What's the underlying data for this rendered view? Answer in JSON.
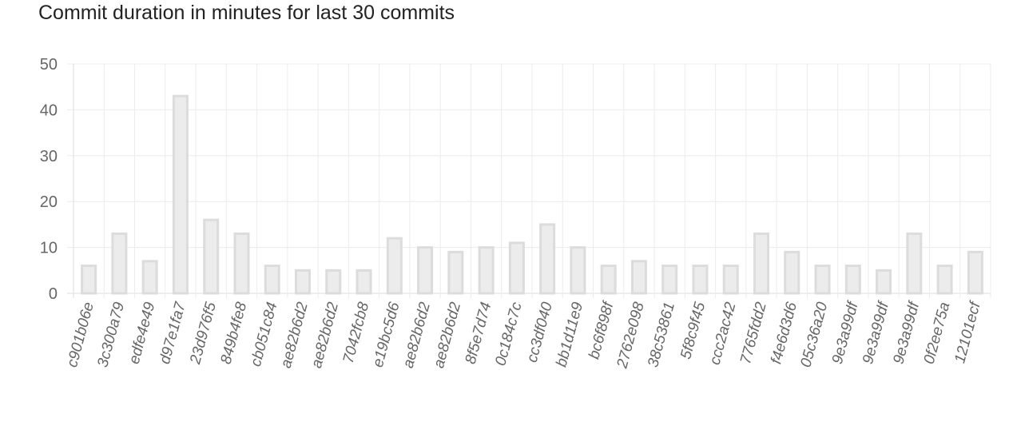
{
  "chart_data": {
    "type": "bar",
    "title": "Commit duration in minutes for last 30 commits",
    "xlabel": "",
    "ylabel": "",
    "ylim": [
      0,
      50
    ],
    "yticks": [
      "0",
      "10",
      "20",
      "30",
      "40",
      "50"
    ],
    "grid": true,
    "categories": [
      "c901b06e",
      "3c300a79",
      "edfe4e49",
      "d97e1fa7",
      "23d976f5",
      "849b4fe8",
      "cb051c84",
      "ae82b6d2",
      "ae82b6d2",
      "7042fcb8",
      "e19bc5d6",
      "ae82b6d2",
      "ae82b6d2",
      "8f5e7d74",
      "0c184c7c",
      "cc3df040",
      "bb1d11e9",
      "bc6f898f",
      "2762e098",
      "38c53861",
      "5f8c9f45",
      "ccc2ac42",
      "7765fdd2",
      "f4e6d3d6",
      "05c36a20",
      "9e3a99df",
      "9e3a99df",
      "9e3a99df",
      "0f2ee75a",
      "12101ecf"
    ],
    "values": [
      6,
      13,
      7,
      43,
      16,
      13,
      6,
      5,
      5,
      5,
      12,
      10,
      9,
      10,
      11,
      15,
      10,
      6,
      7,
      6,
      6,
      6,
      13,
      9,
      6,
      6,
      5,
      13,
      6,
      9
    ],
    "colors": {
      "bar_fill": "#ececec",
      "bar_stroke": "#dcdcdc",
      "grid": "#ececec",
      "axis": "#dddddd",
      "tick_text": "#666666"
    }
  }
}
